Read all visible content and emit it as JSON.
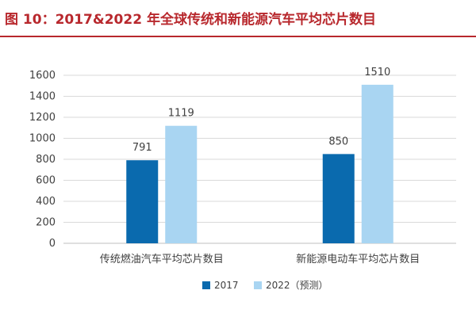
{
  "title": "图 10：2017&2022 年全球传统和新能源汽车平均芯片数目",
  "colors": {
    "accent": "#b8282d",
    "series_2017": "#0a6aae",
    "series_2022": "#a9d5f2"
  },
  "chart_data": {
    "type": "bar",
    "title": "",
    "xlabel": "",
    "ylabel": "",
    "categories": [
      "传统燃油汽车平均芯片数目",
      "新能源电动车平均芯片数目"
    ],
    "series": [
      {
        "name": "2017",
        "values": [
          791,
          850
        ]
      },
      {
        "name": "2022（预测）",
        "values": [
          1119,
          1510
        ]
      }
    ],
    "ylim": [
      0,
      1600
    ],
    "yticks": [
      0,
      200,
      400,
      600,
      800,
      1000,
      1200,
      1400,
      1600
    ],
    "grid": true,
    "legend": "bottom"
  }
}
